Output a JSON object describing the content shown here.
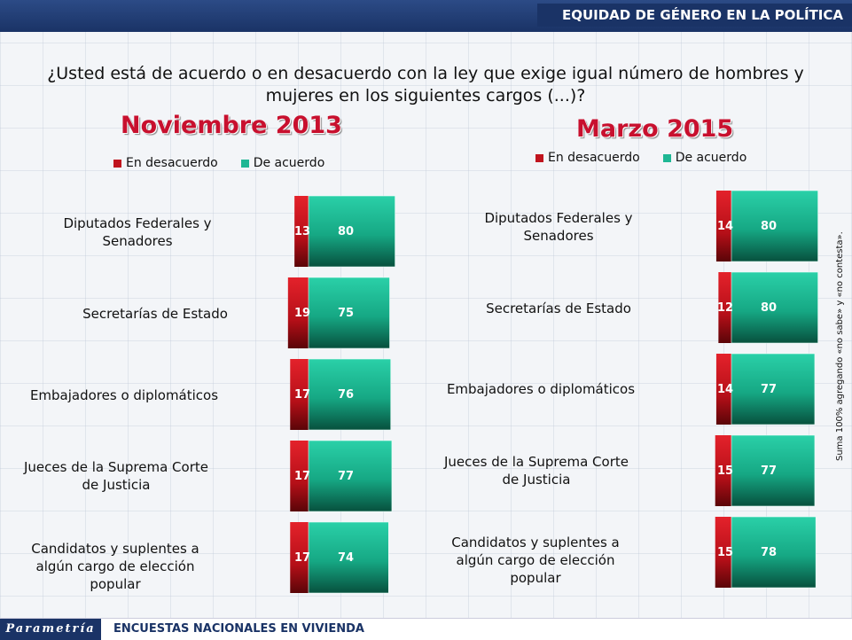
{
  "header": {
    "title": "EQUIDAD DE GÉNERO EN LA POLÍTICA"
  },
  "question": "¿Usted está de acuerdo o en desacuerdo con la ley que exige igual número de hombres y mujeres en los siguientes cargos (...)?",
  "side_note": "Suma 100% agregando «no sabe» y «no contesta».",
  "footer": {
    "brand": "Parametría",
    "text": "ENCUESTAS NACIONALES EN VIVIENDA"
  },
  "colors": {
    "desacuerdo": "#c0141e",
    "acuerdo": "#1fb794",
    "header": "#1a3366"
  },
  "chart_data": [
    {
      "type": "bar",
      "title": "Noviembre 2013",
      "categories": [
        "Diputados Federales y Senadores",
        "Secretarías de Estado",
        "Embajadores o diplomáticos",
        "Jueces de la Suprema Corte de Justicia",
        "Candidatos y suplentes a algún cargo de elección popular"
      ],
      "series": [
        {
          "name": "En desacuerdo",
          "values": [
            13,
            19,
            17,
            17,
            17
          ]
        },
        {
          "name": "De acuerdo",
          "values": [
            80,
            75,
            76,
            77,
            74
          ]
        }
      ],
      "legend": "top"
    },
    {
      "type": "bar",
      "title": "Marzo 2015",
      "categories": [
        "Diputados Federales y Senadores",
        "Secretarías de Estado",
        "Embajadores o diplomáticos",
        "Jueces de la Suprema Corte de Justicia",
        "Candidatos y suplentes a algún cargo de elección popular"
      ],
      "series": [
        {
          "name": "En desacuerdo",
          "values": [
            14,
            12,
            14,
            15,
            15
          ]
        },
        {
          "name": "De acuerdo",
          "values": [
            80,
            80,
            77,
            77,
            78
          ]
        }
      ],
      "legend": "top"
    }
  ]
}
